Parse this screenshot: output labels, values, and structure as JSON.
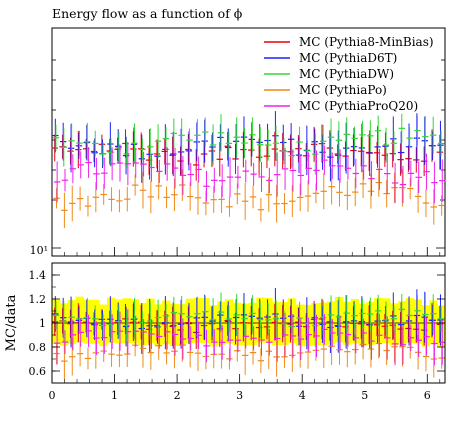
{
  "chart_data": {
    "type": "scatter",
    "title": "Energy flow as a function of ϕ",
    "top_panel": {
      "ylabel": "",
      "yscale": "log",
      "ytick_labels": [
        "10¹"
      ],
      "legend_position": "top-right"
    },
    "ratio_panel": {
      "ylabel": "MC/data",
      "ylim": [
        0.5,
        1.5
      ],
      "yticks": [
        0.6,
        0.8,
        1,
        1.2,
        1.4
      ],
      "ytick_labels": [
        "0.6",
        "0.8",
        "1",
        "1.2",
        "1.4"
      ],
      "reference_line": 1,
      "band_color": "#ffff00",
      "band_halfwidth": 0.18
    },
    "xlim": [
      0,
      6.2832
    ],
    "xticks": [
      0,
      1,
      2,
      3,
      4,
      5,
      6
    ],
    "xtick_labels": [
      "0",
      "1",
      "2",
      "3",
      "4",
      "5",
      "6"
    ],
    "n_bins": 50,
    "series": [
      {
        "name": "MC (Pythia8-MinBias)",
        "color": "#e8000b",
        "level": 0.99,
        "spread": 0.025,
        "phase": 0.0,
        "err": 0.12
      },
      {
        "name": "MC (PythiaD6T)",
        "color": "#1f1fff",
        "level": 1.02,
        "spread": 0.03,
        "phase": 1.7,
        "err": 0.16
      },
      {
        "name": "MC (PythiaDW)",
        "color": "#33d633",
        "level": 1.04,
        "spread": 0.03,
        "phase": 3.1,
        "err": 0.13
      },
      {
        "name": "MC (PythiaPo)",
        "color": "#f08a17",
        "level": 0.76,
        "spread": 0.035,
        "phase": 4.4,
        "err": 0.12
      },
      {
        "name": "MC (PythiaProQ20)",
        "color": "#ee22ee",
        "level": 0.88,
        "spread": 0.03,
        "phase": 5.6,
        "err": 0.14
      }
    ]
  }
}
